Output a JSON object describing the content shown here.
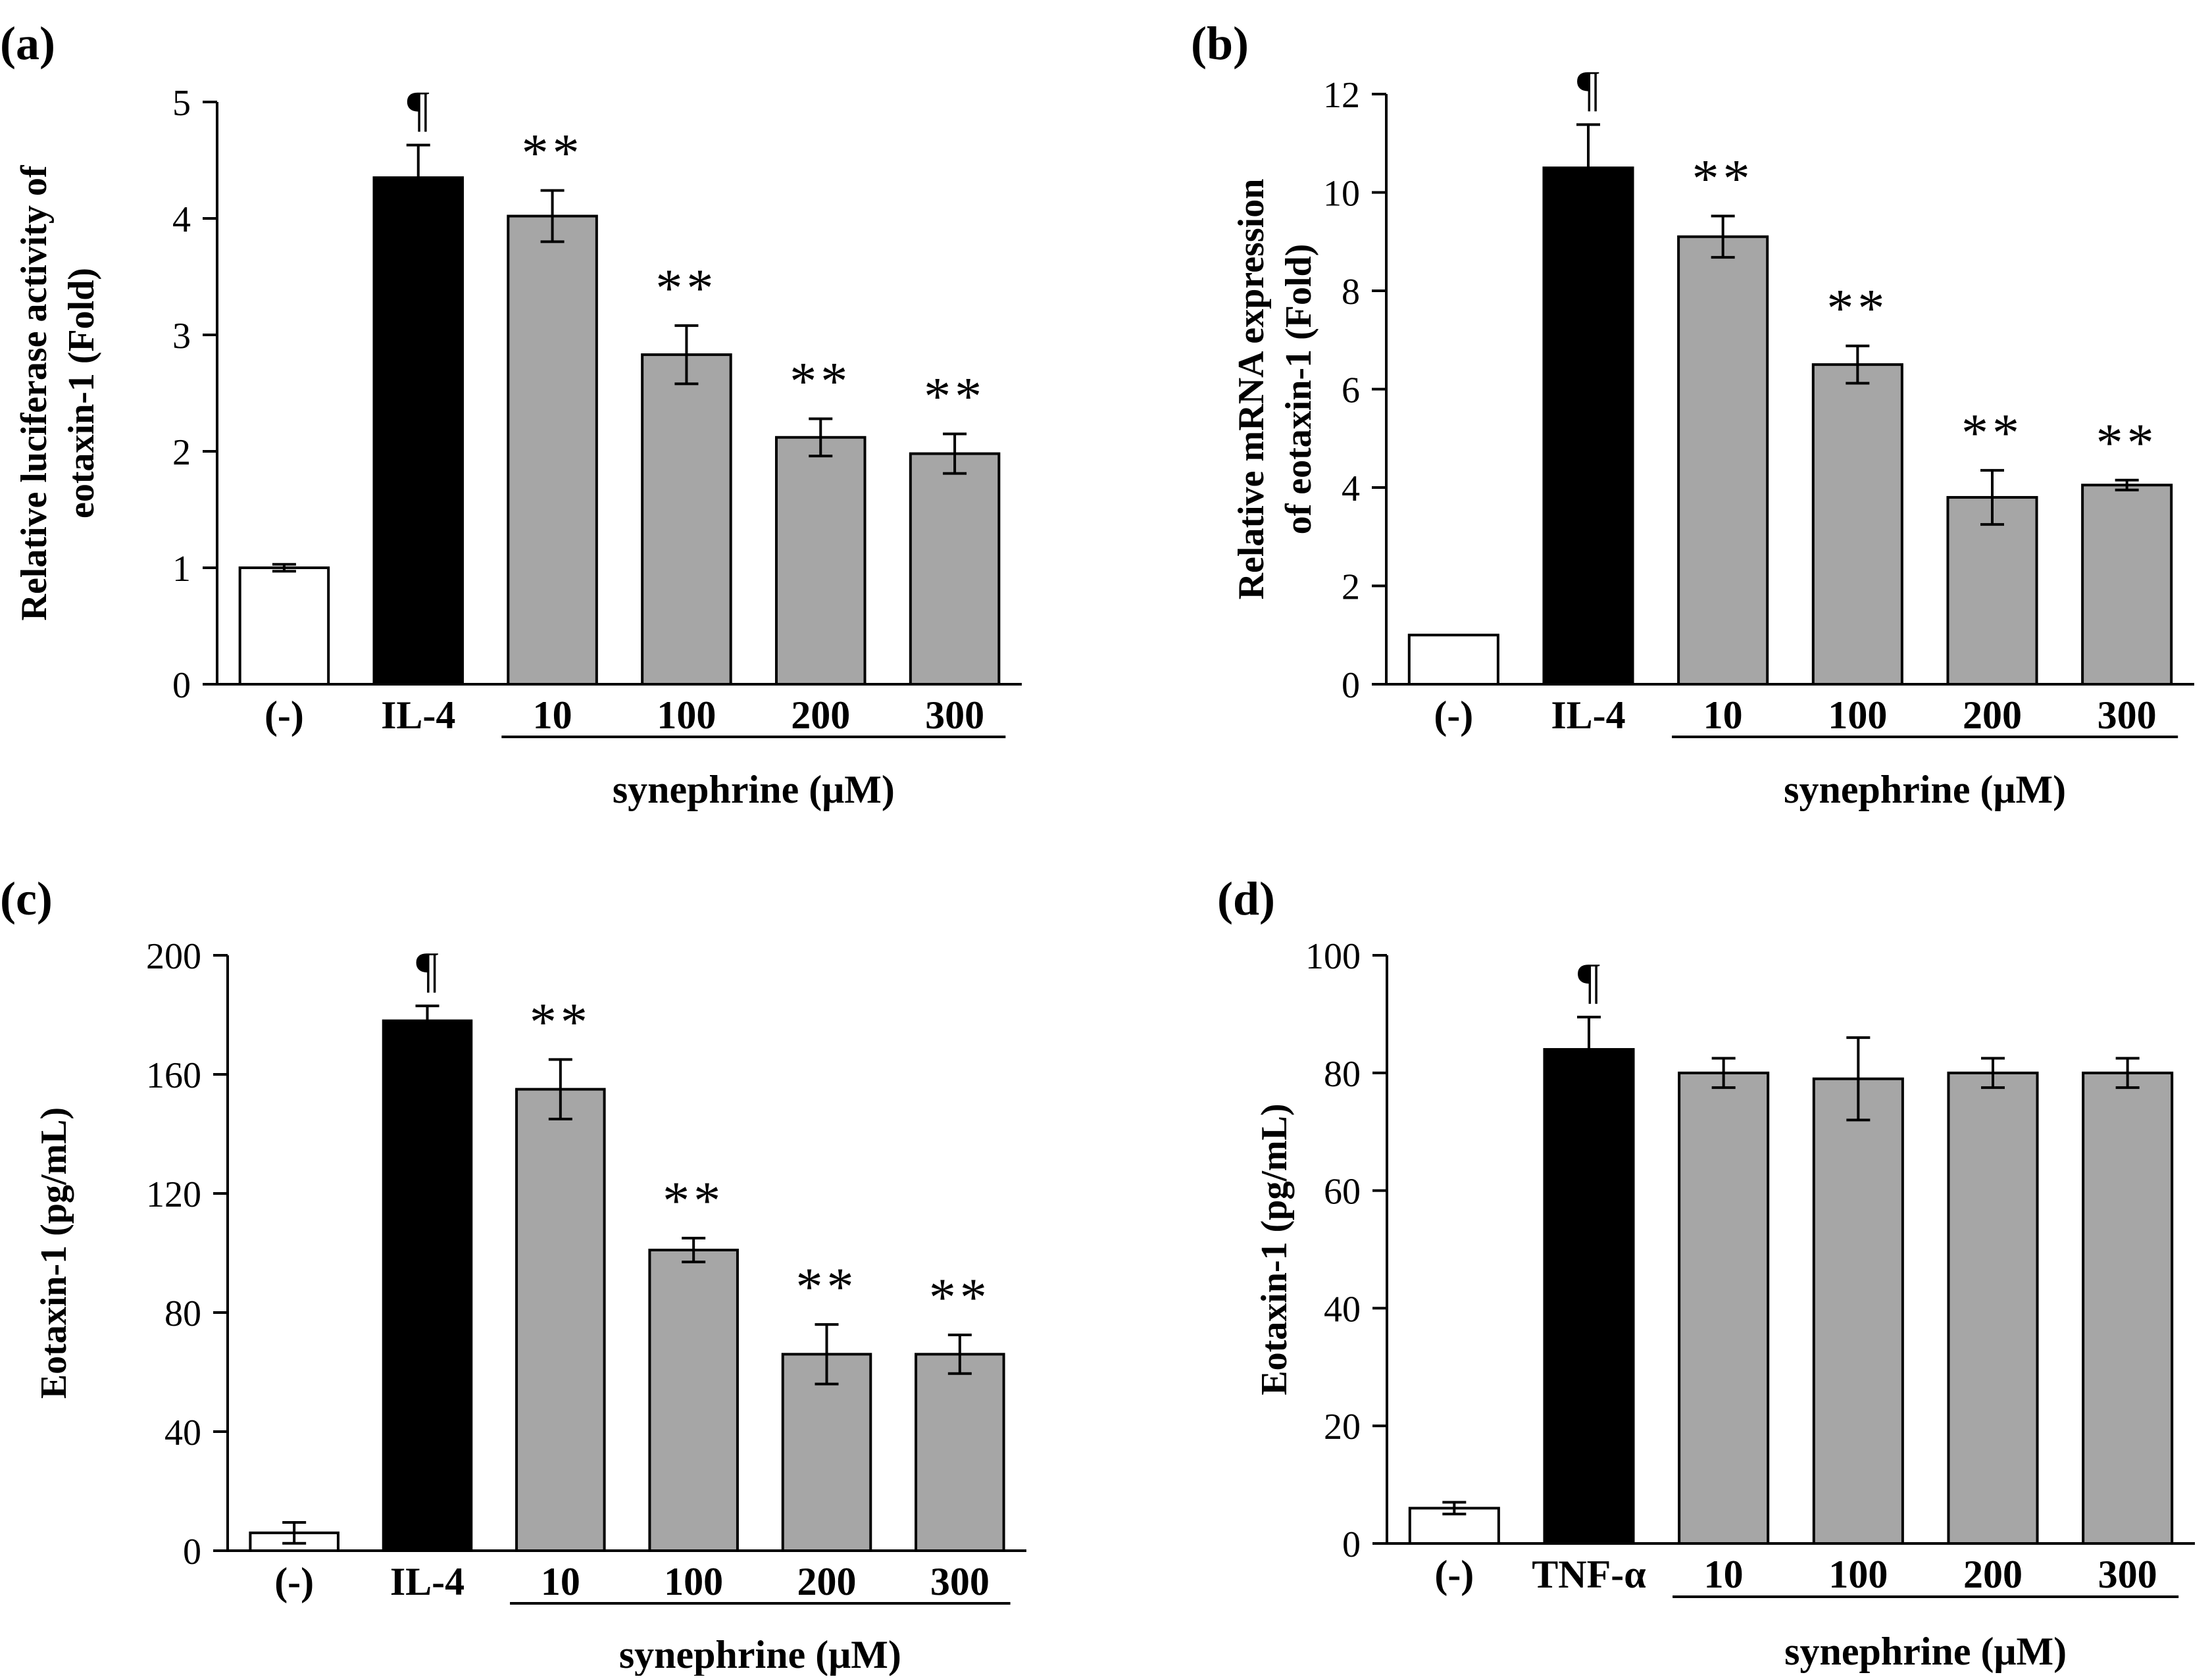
{
  "chart_data": [
    {
      "type": "bar",
      "panel_label": "(a)",
      "ylabel_lines": [
        "Relative luciferase activity of",
        "eotaxin-1 (Fold)"
      ],
      "ylim": [
        0,
        5
      ],
      "yticks": [
        "0",
        "1",
        "2",
        "3",
        "4",
        "5"
      ],
      "categories": [
        "(-)",
        "IL-4",
        "10",
        "100",
        "200",
        "300"
      ],
      "values": [
        1.0,
        4.35,
        4.02,
        2.83,
        2.12,
        1.98
      ],
      "errors": [
        0.03,
        0.28,
        0.22,
        0.25,
        0.16,
        0.17
      ],
      "bar_colors": [
        "#ffffff",
        "#000000",
        "#a6a6a6",
        "#a6a6a6",
        "#a6a6a6",
        "#a6a6a6"
      ],
      "annotations": [
        "",
        "¶",
        "**",
        "**",
        "**",
        "**"
      ],
      "group_label": "synephrine (μM)",
      "group_start": 2,
      "grid": false
    },
    {
      "type": "bar",
      "panel_label": "(b)",
      "ylabel_lines": [
        "Relative mRNA expression",
        "of eotaxin-1 (Fold)"
      ],
      "ylim": [
        0,
        12
      ],
      "yticks": [
        "0",
        "2",
        "4",
        "6",
        "8",
        "10",
        "12"
      ],
      "categories": [
        "(-)",
        "IL-4",
        "10",
        "100",
        "200",
        "300"
      ],
      "values": [
        1.0,
        10.5,
        9.1,
        6.5,
        3.8,
        4.05
      ],
      "errors": [
        0.0,
        0.88,
        0.42,
        0.38,
        0.55,
        0.1
      ],
      "bar_colors": [
        "#ffffff",
        "#000000",
        "#a6a6a6",
        "#a6a6a6",
        "#a6a6a6",
        "#a6a6a6"
      ],
      "annotations": [
        "",
        "¶",
        "**",
        "**",
        "**",
        "**"
      ],
      "group_label": "synephrine (μM)",
      "group_start": 2,
      "grid": false
    },
    {
      "type": "bar",
      "panel_label": "(c)",
      "ylabel_lines": [
        "Eotaxin-1 (pg/mL)"
      ],
      "ylim": [
        0,
        200
      ],
      "yticks": [
        "0",
        "40",
        "80",
        "120",
        "160",
        "200"
      ],
      "categories": [
        "(-)",
        "IL-4",
        "10",
        "100",
        "200",
        "300"
      ],
      "values": [
        6,
        178,
        155,
        101,
        66,
        66
      ],
      "errors": [
        3.5,
        5,
        10,
        4,
        10,
        6.5
      ],
      "bar_colors": [
        "#ffffff",
        "#000000",
        "#a6a6a6",
        "#a6a6a6",
        "#a6a6a6",
        "#a6a6a6"
      ],
      "annotations": [
        "",
        "¶",
        "**",
        "**",
        "**",
        "**"
      ],
      "group_label": "synephrine (μM)",
      "group_start": 2,
      "grid": false
    },
    {
      "type": "bar",
      "panel_label": "(d)",
      "ylabel_lines": [
        "Eotaxin-1 (pg/mL)"
      ],
      "ylim": [
        0,
        100
      ],
      "yticks": [
        "0",
        "20",
        "40",
        "60",
        "80",
        "100"
      ],
      "categories": [
        "(-)",
        "TNF-α",
        "10",
        "100",
        "200",
        "300"
      ],
      "values": [
        6,
        84,
        80,
        79,
        80,
        80
      ],
      "errors": [
        1,
        5.5,
        2.5,
        7,
        2.5,
        2.5
      ],
      "bar_colors": [
        "#ffffff",
        "#000000",
        "#a6a6a6",
        "#a6a6a6",
        "#a6a6a6",
        "#a6a6a6"
      ],
      "annotations": [
        "",
        "¶",
        "",
        "",
        "",
        ""
      ],
      "group_label": "synephrine (μM)",
      "group_start": 2,
      "grid": false
    }
  ]
}
